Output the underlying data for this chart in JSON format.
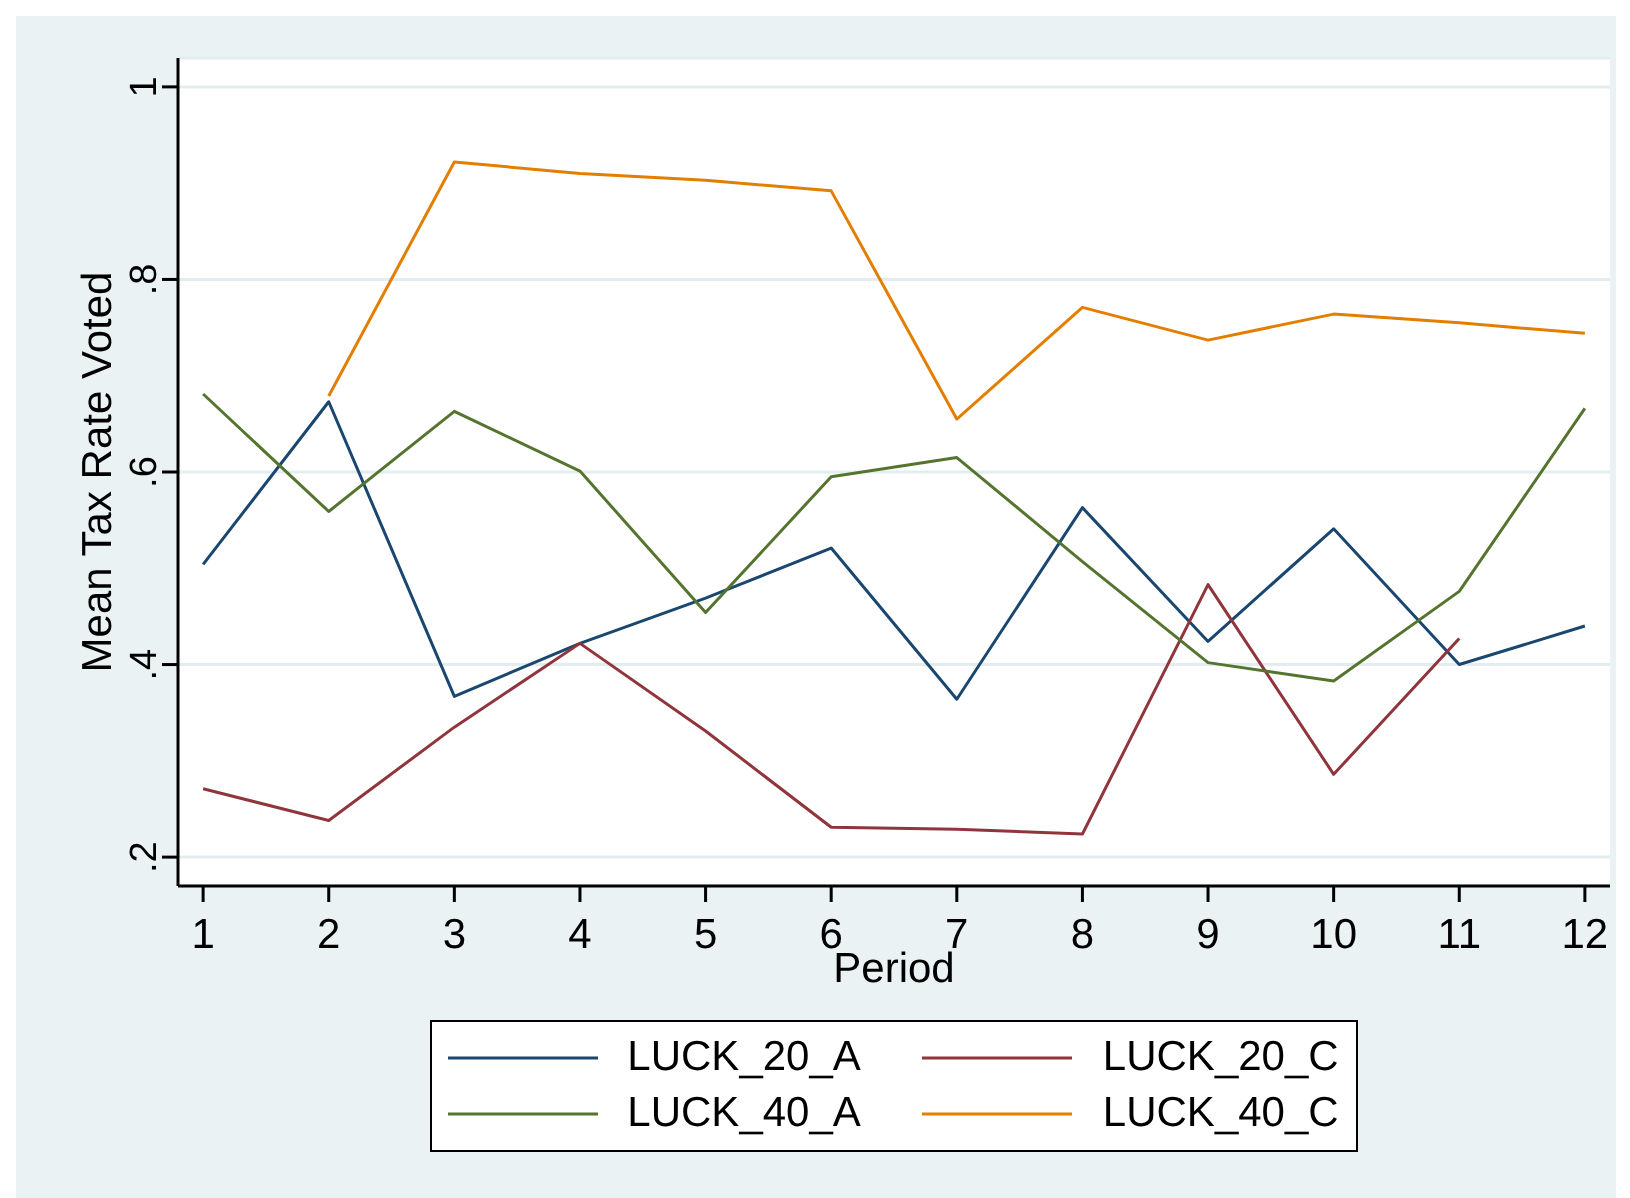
{
  "chart_data": {
    "type": "line",
    "xlabel": "Period",
    "ylabel": "Mean Tax Rate Voted",
    "x": [
      1,
      2,
      3,
      4,
      5,
      6,
      7,
      8,
      9,
      10,
      11,
      12
    ],
    "series": [
      {
        "name": "LUCK_20_A",
        "color": "#1a476f",
        "values": [
          0.504,
          0.673,
          0.367,
          0.422,
          0.469,
          0.521,
          0.364,
          0.563,
          0.424,
          0.541,
          0.4,
          0.44
        ]
      },
      {
        "name": "LUCK_20_C",
        "color": "#90353b",
        "values": [
          0.271,
          0.238,
          0.335,
          0.422,
          0.331,
          0.231,
          0.229,
          0.224,
          0.483,
          0.286,
          0.427,
          null
        ]
      },
      {
        "name": "LUCK_40_A",
        "color": "#55752f",
        "values": [
          0.681,
          0.559,
          0.663,
          0.601,
          0.454,
          0.595,
          0.615,
          0.507,
          0.402,
          0.383,
          0.476,
          0.666
        ]
      },
      {
        "name": "LUCK_40_C",
        "color": "#e37e00",
        "values": [
          null,
          0.679,
          0.922,
          0.91,
          0.903,
          0.892,
          0.655,
          0.771,
          0.737,
          0.764,
          0.755,
          0.744
        ]
      }
    ],
    "xlim": [
      0.8,
      12.2
    ],
    "xticks": [
      1,
      2,
      3,
      4,
      5,
      6,
      7,
      8,
      9,
      10,
      11,
      12
    ],
    "ylim": [
      0.17,
      1.03
    ],
    "yticks": [
      {
        "value": 0.2,
        "label": ".2"
      },
      {
        "value": 0.4,
        "label": ".4"
      },
      {
        "value": 0.6,
        "label": ".6"
      },
      {
        "value": 0.8,
        "label": ".8"
      },
      1
    ],
    "grid": "y",
    "legend": "bottom",
    "line_style": "solid"
  }
}
